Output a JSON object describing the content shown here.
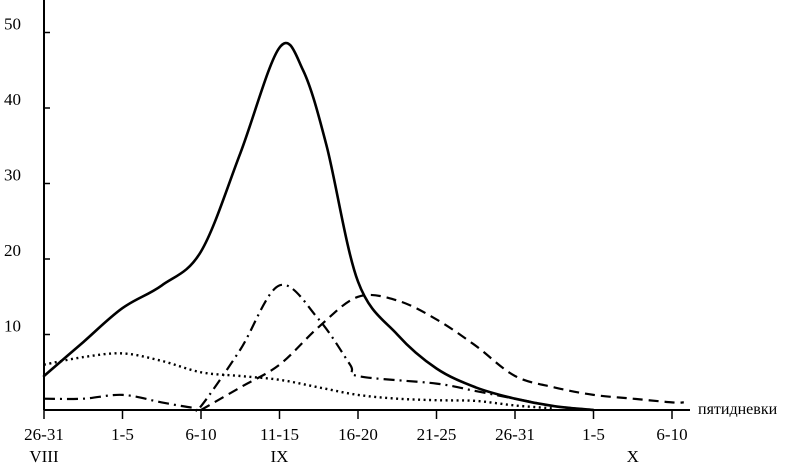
{
  "chart_data": {
    "type": "line",
    "xlabel": "пятидневки",
    "ylabel": "",
    "ylim": [
      0,
      53
    ],
    "yticks": [
      10,
      20,
      30,
      40,
      50
    ],
    "x_categories": [
      "26-31",
      "1-5",
      "6-10",
      "11-15",
      "16-20",
      "21-25",
      "26-31",
      "1-5",
      "6-10"
    ],
    "month_labels": [
      {
        "label": "VIII",
        "at_index": 0
      },
      {
        "label": "IX",
        "at_index": 3
      },
      {
        "label": "X",
        "at_index": 7.5
      }
    ],
    "grid": false,
    "legend": "none",
    "series": [
      {
        "style": "solid",
        "points": [
          [
            0,
            4.5
          ],
          [
            0.5,
            9
          ],
          [
            1,
            13.5
          ],
          [
            1.5,
            16.5
          ],
          [
            2,
            21
          ],
          [
            2.5,
            34
          ],
          [
            3,
            48
          ],
          [
            3.3,
            45
          ],
          [
            3.6,
            35
          ],
          [
            4,
            17
          ],
          [
            4.5,
            10
          ],
          [
            5,
            5.5
          ],
          [
            5.5,
            3
          ],
          [
            6,
            1.5
          ],
          [
            6.5,
            0.5
          ],
          [
            7,
            0
          ]
        ]
      },
      {
        "style": "dashed",
        "points": [
          [
            2,
            0
          ],
          [
            2.5,
            3
          ],
          [
            3,
            6
          ],
          [
            3.5,
            11
          ],
          [
            4,
            15
          ],
          [
            4.5,
            14.5
          ],
          [
            5,
            12
          ],
          [
            5.5,
            8.5
          ],
          [
            6,
            4.5
          ],
          [
            6.5,
            3
          ],
          [
            7,
            2
          ],
          [
            7.5,
            1.5
          ],
          [
            8,
            1
          ],
          [
            8.15,
            1
          ]
        ]
      },
      {
        "style": "dash-dot",
        "points": [
          [
            0,
            1.5
          ],
          [
            0.5,
            1.5
          ],
          [
            1,
            2
          ],
          [
            1.5,
            1
          ],
          [
            1.9,
            0.3
          ],
          [
            2,
            0.5
          ],
          [
            2.5,
            8
          ],
          [
            3,
            16.5
          ],
          [
            3.5,
            12
          ],
          [
            3.9,
            6
          ],
          [
            4,
            4.5
          ],
          [
            5,
            3.5
          ],
          [
            5.5,
            2.5
          ],
          [
            6,
            1.5
          ],
          [
            6.5,
            0.5
          ],
          [
            7,
            0
          ]
        ]
      },
      {
        "style": "dotted",
        "points": [
          [
            0,
            6
          ],
          [
            0.5,
            7
          ],
          [
            1,
            7.5
          ],
          [
            1.5,
            6.5
          ],
          [
            2,
            5
          ],
          [
            2.5,
            4.5
          ],
          [
            3,
            4
          ],
          [
            3.5,
            3
          ],
          [
            4,
            2
          ],
          [
            4.5,
            1.5
          ],
          [
            5,
            1.3
          ],
          [
            5.5,
            1.2
          ],
          [
            6,
            0.6
          ],
          [
            6.5,
            0.2
          ]
        ]
      }
    ]
  }
}
